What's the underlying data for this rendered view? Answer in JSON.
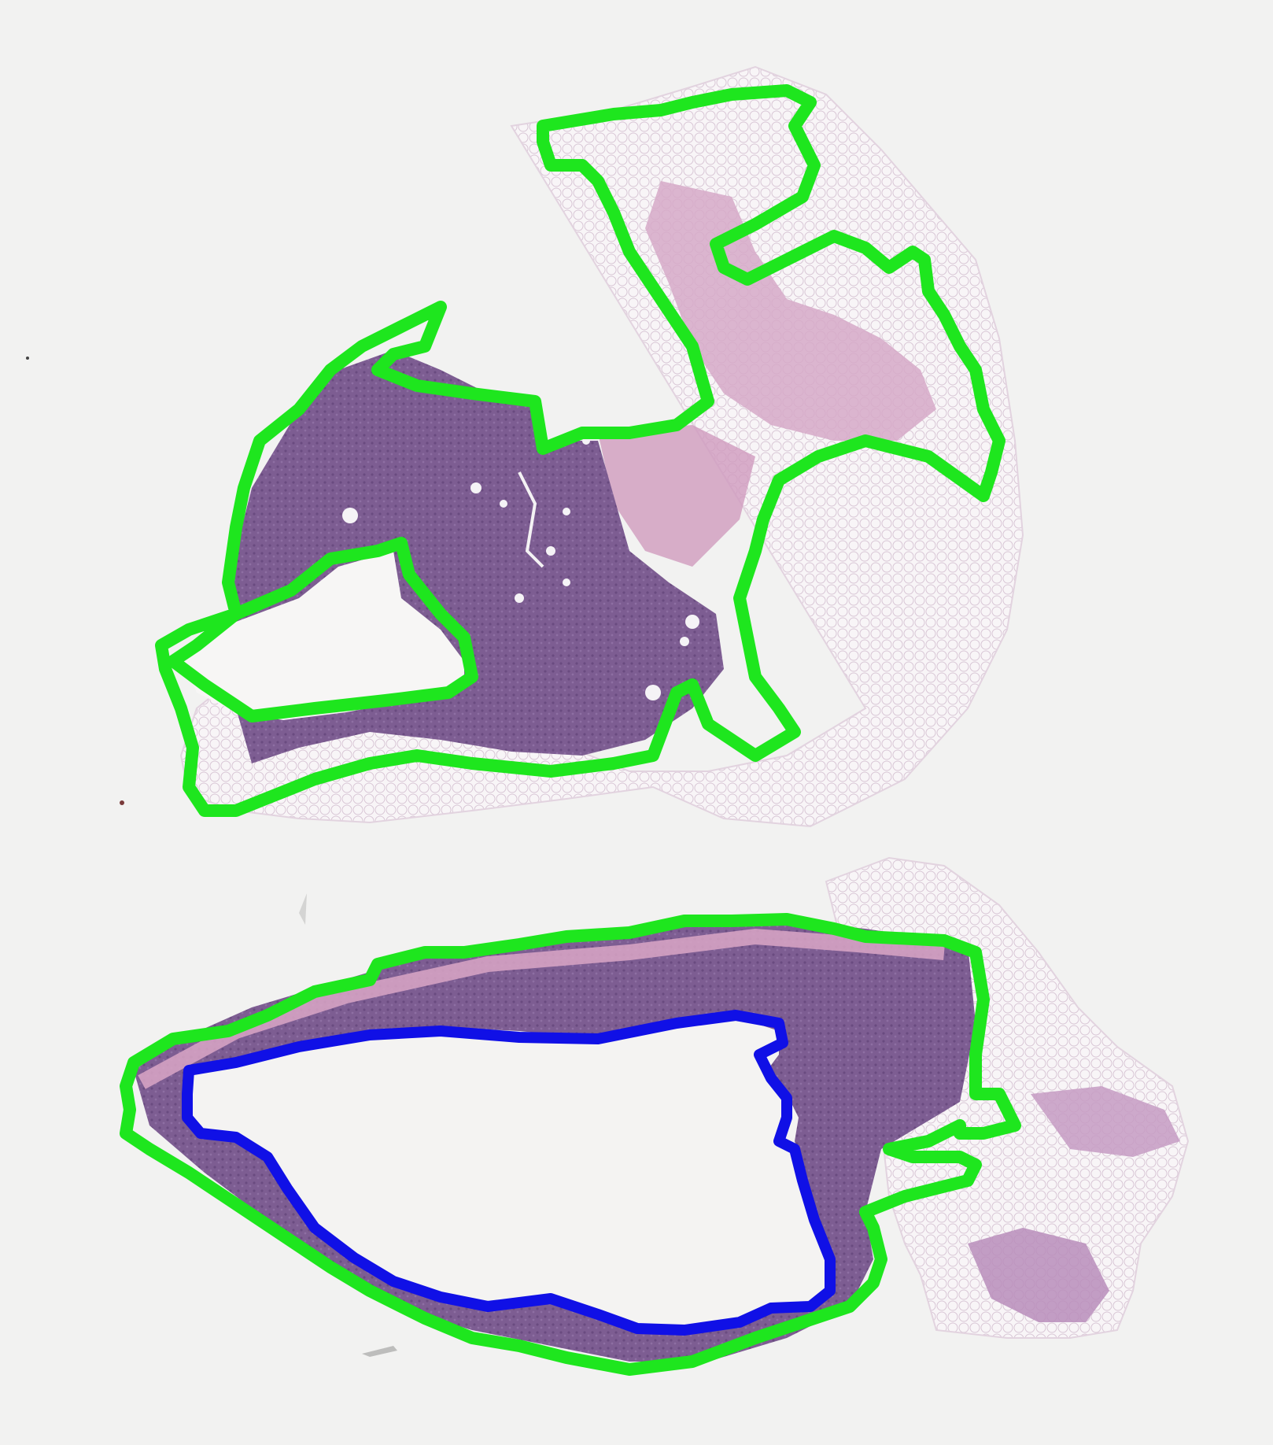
{
  "image": {
    "kind": "histology-slide",
    "stain": "H&E",
    "background_color": "#f2f2f1",
    "annotation_colors": {
      "tissue_region": "#1ee61e",
      "lumen_region": "#1010e6"
    },
    "tissue_colors": {
      "dense_purple": "#7a5a8f",
      "pink_stroma": "#c99ab8",
      "fat_white": "#f7f4f6"
    }
  }
}
